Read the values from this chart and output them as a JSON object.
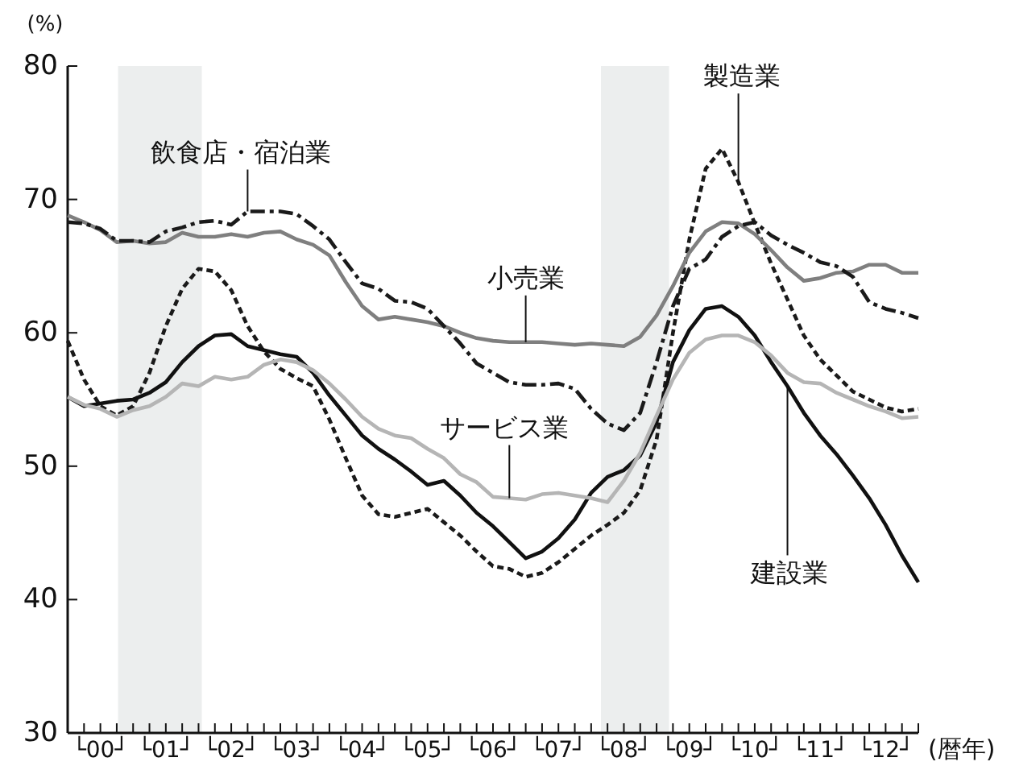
{
  "chart_data": {
    "type": "line",
    "ylabel": "(%)",
    "xlabel": "(暦年)",
    "ylim": [
      30,
      80
    ],
    "yticks": [
      30,
      40,
      50,
      60,
      70,
      80
    ],
    "categories": [
      null,
      null,
      "└00┘",
      null,
      null,
      null,
      "└01┘",
      null,
      null,
      null,
      "└02┘",
      null,
      null,
      null,
      "└03┘",
      null,
      null,
      null,
      "└04┘",
      null,
      null,
      null,
      "└05┘",
      null,
      null,
      null,
      "└06┘",
      null,
      null,
      null,
      "└07┘",
      null,
      null,
      null,
      "└08┘",
      null,
      null,
      null,
      "└09┘",
      null,
      null,
      null,
      "└10┘",
      null,
      null,
      null,
      "└11┘",
      null,
      null,
      null,
      "└12┘",
      null,
      null
    ],
    "grid": false,
    "series": [
      {
        "name": "製造業",
        "color": "#1a1a1a",
        "line_style": "dashed",
        "values": [
          59.4,
          56.5,
          54.5,
          53.8,
          54.5,
          57.0,
          60.5,
          63.3,
          64.8,
          64.6,
          63.2,
          60.5,
          58.6,
          57.3,
          56.6,
          56.0,
          53.5,
          50.6,
          47.8,
          46.4,
          46.2,
          46.5,
          46.8,
          45.8,
          44.8,
          43.6,
          42.5,
          42.3,
          41.7,
          42.0,
          42.8,
          43.8,
          44.8,
          45.6,
          46.5,
          48.2,
          52.0,
          60.0,
          67.0,
          72.3,
          73.8,
          71.3,
          68.2,
          65.2,
          62.5,
          59.8,
          58.0,
          56.8,
          55.6,
          55.0,
          54.4,
          54.1,
          54.3
        ]
      },
      {
        "name": "建設業",
        "color": "#111111",
        "line_style": "solid",
        "values": [
          55.2,
          54.5,
          54.7,
          54.9,
          55.0,
          55.5,
          56.3,
          57.8,
          59.0,
          59.8,
          59.9,
          59.0,
          58.7,
          58.4,
          58.2,
          57.0,
          55.3,
          53.8,
          52.3,
          51.3,
          50.5,
          49.6,
          48.6,
          48.9,
          47.8,
          46.5,
          45.5,
          44.3,
          43.1,
          43.6,
          44.6,
          46.0,
          48.0,
          49.2,
          49.7,
          50.8,
          53.3,
          57.8,
          60.2,
          61.8,
          62.0,
          61.2,
          59.8,
          57.8,
          56.0,
          54.0,
          52.3,
          50.9,
          49.3,
          47.6,
          45.6,
          43.3,
          41.3
        ]
      },
      {
        "name": "小売業",
        "color": "#7f7f7f",
        "line_style": "solid",
        "values": [
          68.8,
          68.3,
          67.7,
          66.8,
          66.9,
          66.7,
          66.8,
          67.5,
          67.2,
          67.2,
          67.4,
          67.2,
          67.5,
          67.6,
          67.0,
          66.6,
          65.8,
          63.8,
          62.0,
          61.0,
          61.2,
          61.0,
          60.8,
          60.5,
          60.0,
          59.6,
          59.4,
          59.3,
          59.3,
          59.3,
          59.2,
          59.1,
          59.2,
          59.1,
          59.0,
          59.7,
          61.3,
          63.5,
          66.0,
          67.6,
          68.3,
          68.2,
          67.4,
          66.2,
          64.9,
          63.9,
          64.1,
          64.5,
          64.6,
          65.1,
          65.1,
          64.5,
          64.5
        ]
      },
      {
        "name": "飲食店・宿泊業",
        "color": "#1a1a1a",
        "line_style": "dashdot",
        "values": [
          68.3,
          68.2,
          67.8,
          66.9,
          66.9,
          66.8,
          67.6,
          67.9,
          68.3,
          68.4,
          68.1,
          69.1,
          69.1,
          69.1,
          68.9,
          68.0,
          67.0,
          65.3,
          63.7,
          63.3,
          62.4,
          62.3,
          61.8,
          60.5,
          59.2,
          57.7,
          57.0,
          56.3,
          56.1,
          56.1,
          56.2,
          55.8,
          54.3,
          53.2,
          52.7,
          54.0,
          57.8,
          62.0,
          64.8,
          65.5,
          67.2,
          68.0,
          68.3,
          67.3,
          66.6,
          66.0,
          65.3,
          65.0,
          64.2,
          62.3,
          61.8,
          61.5,
          61.1
        ]
      },
      {
        "name": "サービス業",
        "color": "#b5b5b5",
        "line_style": "solid",
        "values": [
          55.2,
          54.6,
          54.3,
          53.7,
          54.2,
          54.5,
          55.2,
          56.2,
          56.0,
          56.7,
          56.5,
          56.7,
          57.6,
          58.0,
          57.8,
          57.2,
          56.2,
          55.0,
          53.7,
          52.8,
          52.3,
          52.1,
          51.3,
          50.6,
          49.4,
          48.8,
          47.7,
          47.6,
          47.5,
          47.9,
          48.0,
          47.8,
          47.6,
          47.3,
          48.9,
          51.0,
          53.8,
          56.5,
          58.5,
          59.5,
          59.8,
          59.8,
          59.3,
          58.3,
          57.0,
          56.3,
          56.2,
          55.5,
          55.0,
          54.5,
          54.1,
          53.6,
          53.7
        ]
      }
    ]
  }
}
